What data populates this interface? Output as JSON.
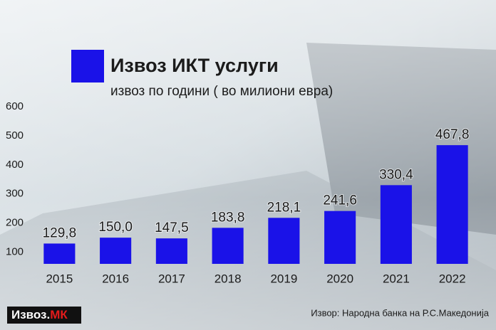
{
  "chart_data": {
    "type": "bar",
    "title": "Извоз ИКТ услуги",
    "subtitle": "извоз по години ( во милиони евра)",
    "categories": [
      "2015",
      "2016",
      "2017",
      "2018",
      "2019",
      "2020",
      "2021",
      "2022"
    ],
    "values": [
      129.8,
      150.0,
      147.5,
      183.8,
      218.1,
      241.6,
      330.4,
      467.8
    ],
    "value_labels": [
      "129,8",
      "150,0",
      "147,5",
      "183,8",
      "218,1",
      "241,6",
      "330,4",
      "467,8"
    ],
    "color": "#1a12e8",
    "ylim": [
      60,
      600
    ],
    "yticks": [
      100,
      200,
      300,
      400,
      500,
      600
    ],
    "grid": false,
    "source": "Извор: Народна банка на Р.С.Македонија",
    "logo": {
      "text": "Извоз.",
      "highlight": "МК"
    }
  }
}
